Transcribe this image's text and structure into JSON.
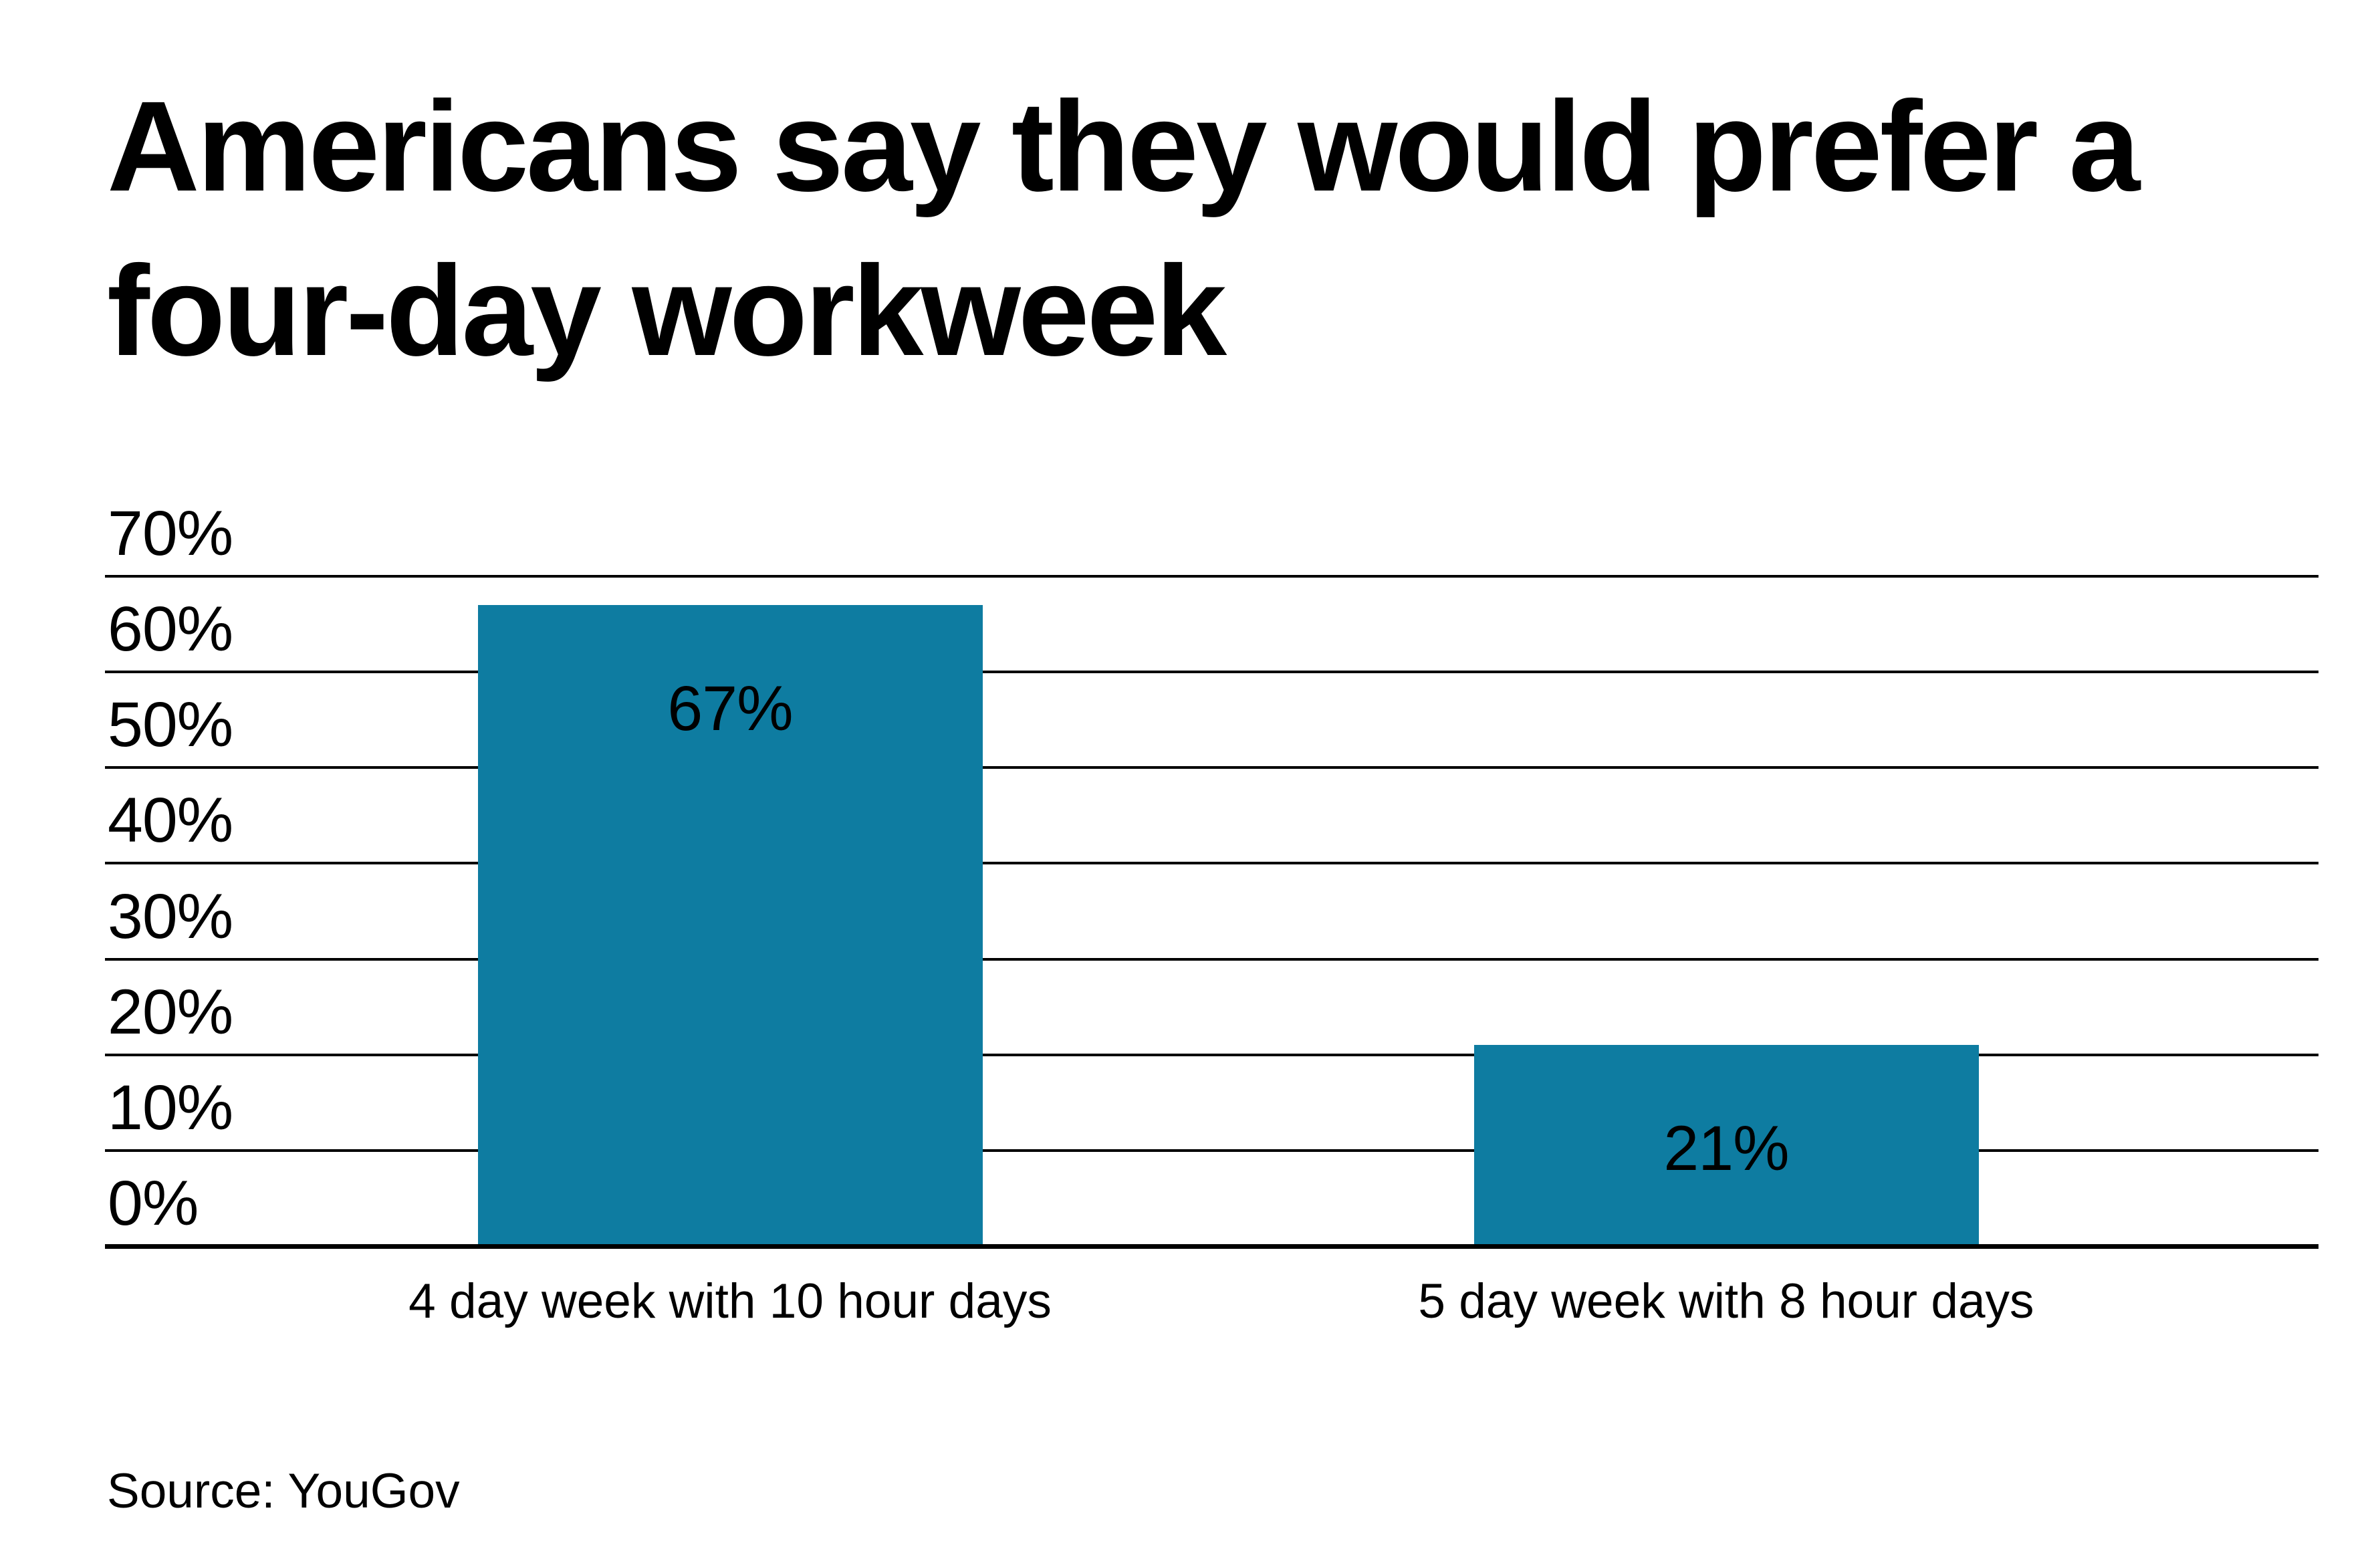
{
  "page": {
    "title_lines": [
      "Americans say they would prefer a",
      "four-day workweek"
    ],
    "source": "Source: YouGov"
  },
  "chart_data": {
    "type": "bar",
    "title": "Americans say they would prefer a four-day workweek",
    "categories": [
      "4 day week with 10 hour days",
      "5 day week with 8 hour days"
    ],
    "values": [
      67,
      21
    ],
    "value_labels": [
      "67%",
      "21%"
    ],
    "yticks": [
      70,
      60,
      50,
      40,
      30,
      20,
      10,
      0
    ],
    "ytick_labels": [
      "70%",
      "60%",
      "50%",
      "40%",
      "30%",
      "20%",
      "10%",
      "0%"
    ],
    "ylim": [
      0,
      70
    ],
    "grid": true,
    "legend": "none",
    "bar_color": "#0e7ca1",
    "grid_color": "#000000",
    "text_color": "#000000",
    "source": "Source: YouGov"
  }
}
